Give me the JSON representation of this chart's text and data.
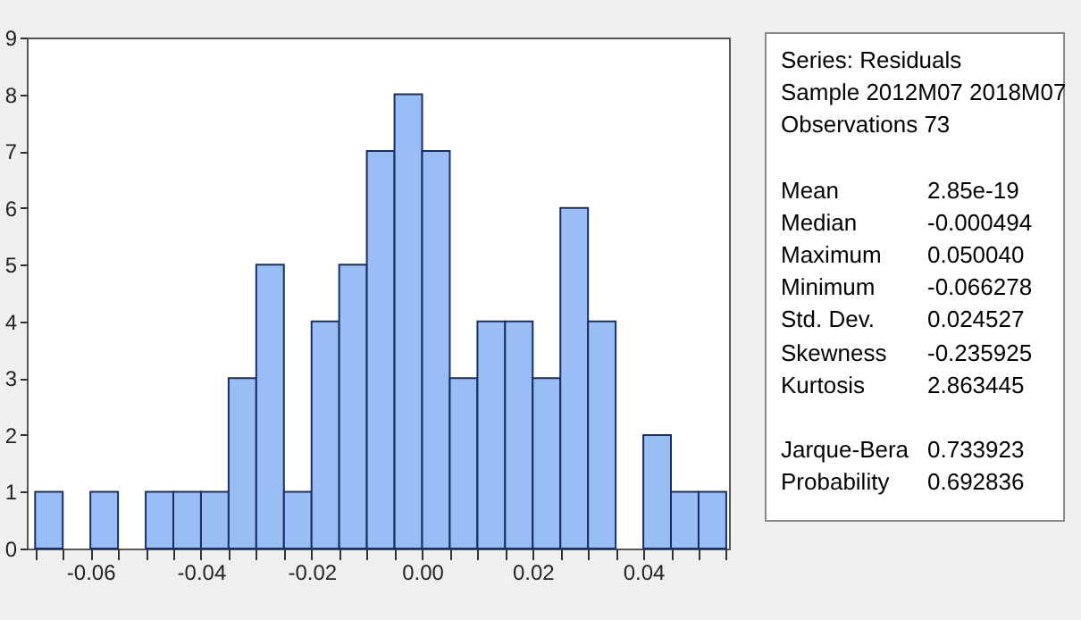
{
  "chart_data": {
    "type": "histogram",
    "bins": [
      -0.07,
      -0.065,
      -0.06,
      -0.055,
      -0.05,
      -0.045,
      -0.04,
      -0.035,
      -0.03,
      -0.025,
      -0.02,
      -0.015,
      -0.01,
      -0.005,
      0,
      0.005,
      0.01,
      0.015,
      0.02,
      0.025,
      0.03,
      0.035,
      0.04,
      0.045,
      0.05,
      0.055
    ],
    "values": [
      1,
      0,
      1,
      0,
      1,
      1,
      1,
      3,
      5,
      1,
      4,
      5,
      7,
      8,
      7,
      3,
      4,
      4,
      3,
      6,
      4,
      0,
      2,
      1,
      1
    ],
    "color": "#99bdf5",
    "xlim": [
      -0.0715,
      0.0555
    ],
    "xticks": [
      {
        "value": -0.07,
        "label": null
      },
      {
        "value": -0.065,
        "label": null
      },
      -0.06,
      {
        "value": -0.055,
        "label": null
      },
      {
        "value": -0.05,
        "label": null
      },
      {
        "value": -0.045,
        "label": null
      },
      -0.04,
      {
        "value": -0.035,
        "label": null
      },
      {
        "value": -0.03,
        "label": null
      },
      {
        "value": -0.025,
        "label": null
      },
      -0.02,
      {
        "value": -0.015,
        "label": null
      },
      {
        "value": -0.01,
        "label": null
      },
      {
        "value": -0.005,
        "label": null
      },
      {
        "value": 0,
        "label": "0.00"
      },
      {
        "value": 0.005,
        "label": null
      },
      {
        "value": 0.01,
        "label": null
      },
      {
        "value": 0.015,
        "label": null
      },
      0.02,
      {
        "value": 0.025,
        "label": null
      },
      {
        "value": 0.03,
        "label": null
      },
      {
        "value": 0.035,
        "label": null
      },
      0.04,
      {
        "value": 0.045,
        "label": null
      },
      {
        "value": 0.05,
        "label": null
      },
      {
        "value": 0.055,
        "label": null
      }
    ],
    "ylim": [
      0,
      9
    ],
    "yticks": [
      0,
      1,
      2,
      3,
      4,
      5,
      6,
      7,
      8,
      9
    ],
    "grid": false,
    "annotations": [
      "Series: Residuals",
      "Sample 2012M07 2018M07",
      "Observations 73",
      "Mean 2.85e-19",
      "Median -0.000494",
      "Maximum 0.050040",
      "Minimum -0.066278",
      "Std. Dev. 0.024527",
      "Skewness -0.235925",
      "Kurtosis 2.863445",
      "Jarque-Bera 0.733923",
      "Probability 0.692836"
    ]
  }
}
